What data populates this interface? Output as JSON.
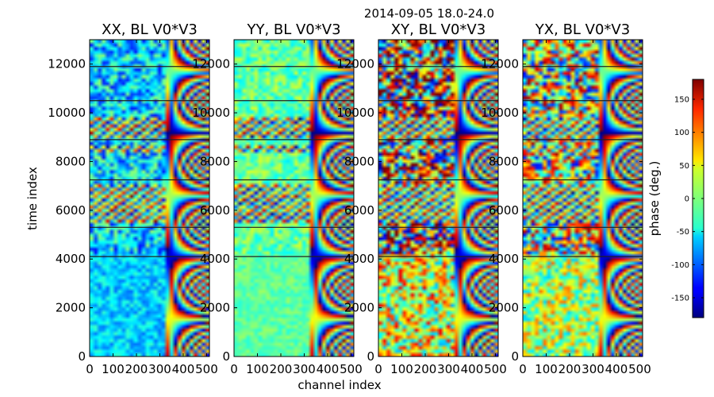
{
  "figure": {
    "suptitle": "2014-09-05 18.0-24.0",
    "xlabel": "channel index",
    "ylabel": "time index"
  },
  "colorbar": {
    "label": "phase (deg.)",
    "ticks": [
      150,
      100,
      50,
      0,
      -50,
      -100,
      -150
    ],
    "range": [
      -180,
      180
    ],
    "colormap": "jet"
  },
  "chart_data": [
    {
      "type": "heatmap",
      "title": "XX, BL V0*V3",
      "xlim": [
        0,
        512
      ],
      "ylim": [
        0,
        13000
      ],
      "xticks": [
        0,
        100,
        200,
        300,
        400,
        500
      ],
      "yticks": [
        0,
        2000,
        4000,
        6000,
        8000,
        10000,
        12000
      ],
      "z_unit": "phase (deg.)"
    },
    {
      "type": "heatmap",
      "title": "YY, BL V0*V3",
      "xlim": [
        0,
        512
      ],
      "ylim": [
        0,
        13000
      ],
      "xticks": [
        0,
        100,
        200,
        300,
        400,
        500
      ],
      "yticks": [
        0,
        2000,
        4000,
        6000,
        8000,
        10000,
        12000
      ],
      "z_unit": "phase (deg.)"
    },
    {
      "type": "heatmap",
      "title": "XY, BL V0*V3",
      "xlim": [
        0,
        512
      ],
      "ylim": [
        0,
        13000
      ],
      "xticks": [
        0,
        100,
        200,
        300,
        400,
        500
      ],
      "yticks": [
        0,
        2000,
        4000,
        6000,
        8000,
        10000,
        12000
      ],
      "z_unit": "phase (deg.)"
    },
    {
      "type": "heatmap",
      "title": "YX, BL V0*V3",
      "xlim": [
        0,
        512
      ],
      "ylim": [
        0,
        13000
      ],
      "xticks": [
        0,
        100,
        200,
        300,
        400,
        500
      ],
      "yticks": [
        0,
        2000,
        4000,
        6000,
        8000,
        10000,
        12000
      ],
      "z_unit": "phase (deg.)"
    }
  ]
}
